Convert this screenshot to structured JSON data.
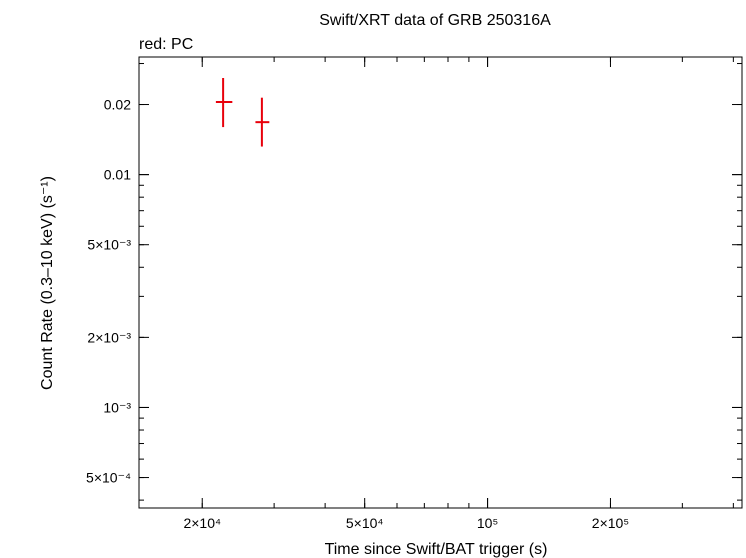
{
  "chart_data": {
    "type": "scatter",
    "title": "Swift/XRT data of GRB 250316A",
    "subtitle": "red: PC",
    "xlabel": "Time since Swift/BAT trigger (s)",
    "ylabel": "Count Rate (0.3–10 keV) (s⁻¹)",
    "x_scale": "log",
    "y_scale": "log",
    "xlim": [
      14000,
      420000
    ],
    "ylim": [
      0.00037,
      0.032
    ],
    "x_ticks": [
      {
        "value": 20000,
        "label": "2×10⁴"
      },
      {
        "value": 50000,
        "label": "5×10⁴"
      },
      {
        "value": 100000,
        "label": "10⁵"
      },
      {
        "value": 200000,
        "label": "2×10⁵"
      }
    ],
    "y_ticks": [
      {
        "value": 0.02,
        "label": "0.02"
      },
      {
        "value": 0.01,
        "label": "0.01"
      },
      {
        "value": 0.005,
        "label": "5×10⁻³"
      },
      {
        "value": 0.002,
        "label": "2×10⁻³"
      },
      {
        "value": 0.001,
        "label": "10⁻³"
      },
      {
        "value": 0.0005,
        "label": "5×10⁻⁴"
      }
    ],
    "grid": false,
    "series": [
      {
        "name": "PC",
        "color": "#e8000b",
        "points": [
          {
            "x": 22500,
            "xerr": [
              21600,
              23700
            ],
            "y": 0.0205,
            "yerr": [
              0.016,
              0.026
            ]
          },
          {
            "x": 28000,
            "xerr": [
              27000,
              29200
            ],
            "y": 0.0168,
            "yerr": [
              0.0132,
              0.0214
            ]
          }
        ]
      }
    ]
  }
}
